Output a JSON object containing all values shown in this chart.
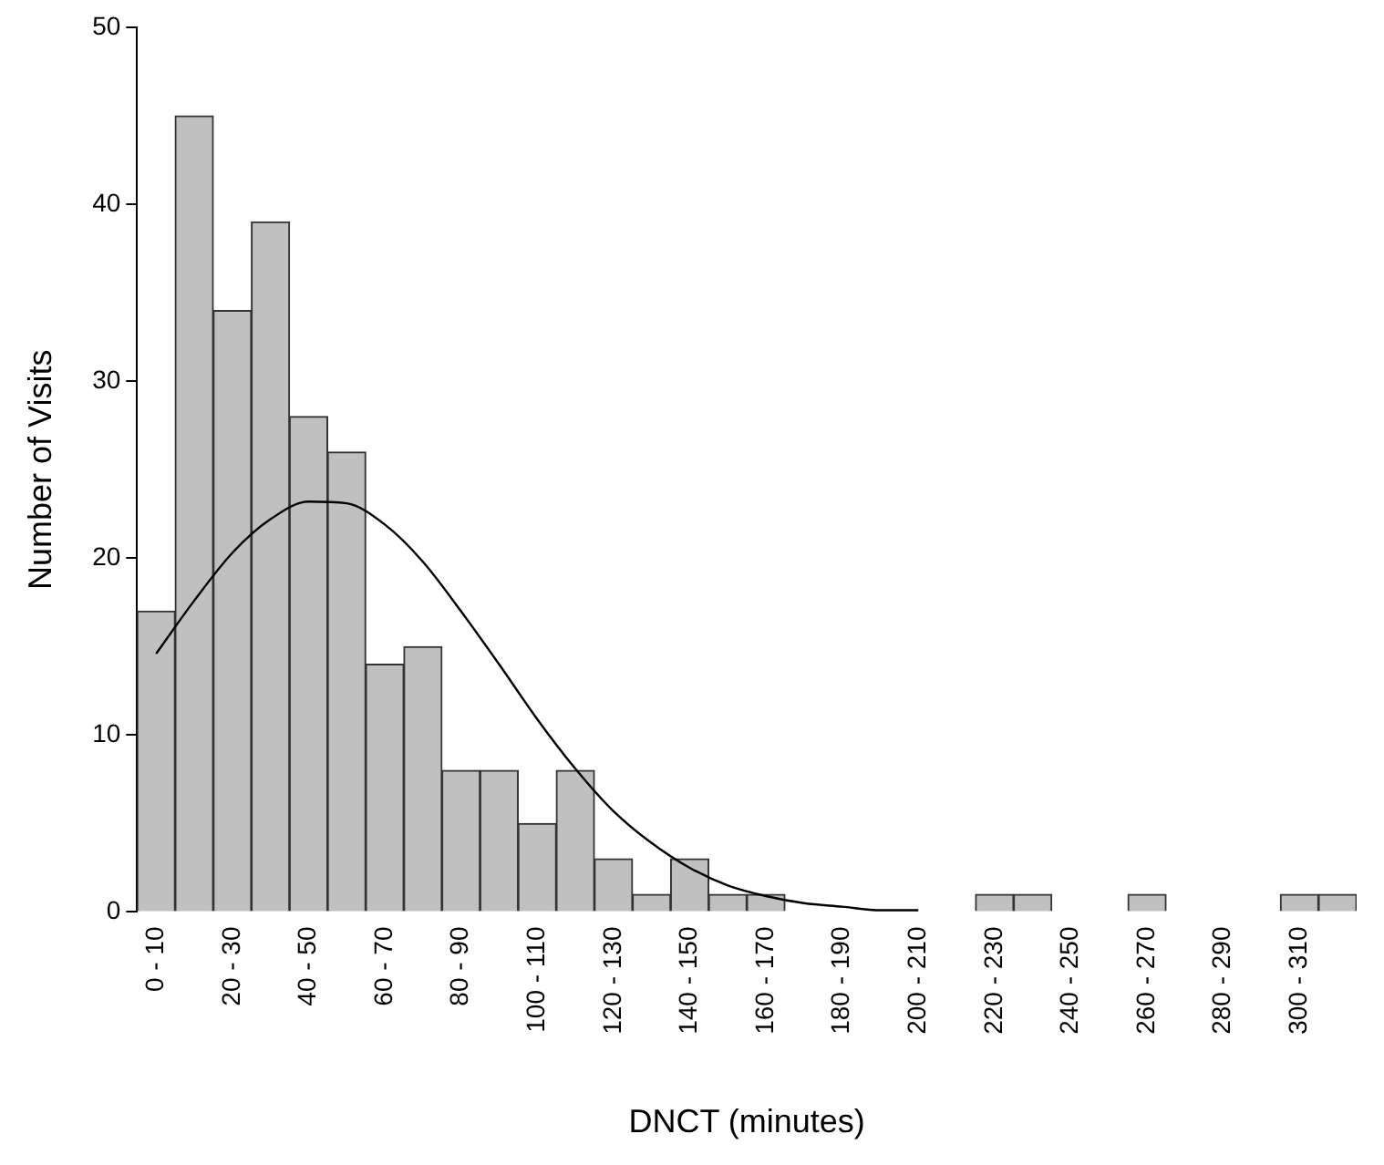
{
  "chart_data": {
    "type": "bar",
    "xlabel": "DNCT (minutes)",
    "ylabel": "Number of Visits",
    "categories": [
      "0 - 10",
      null,
      "20 - 30",
      null,
      "40 - 50",
      null,
      "60 - 70",
      null,
      "80 - 90",
      null,
      "100 - 110",
      null,
      "120 - 130",
      null,
      "140 - 150",
      null,
      "160 - 170",
      null,
      "180 - 190",
      null,
      "200 - 210",
      null,
      "220 - 230",
      null,
      "240 - 250",
      null,
      "260 - 270",
      null,
      "280 - 290",
      null,
      "300 - 310",
      null
    ],
    "values": [
      17,
      45,
      34,
      39,
      28,
      26,
      14,
      15,
      8,
      8,
      5,
      8,
      3,
      1,
      3,
      1,
      1,
      0,
      0,
      0,
      0,
      0,
      1,
      1,
      0,
      0,
      1,
      0,
      0,
      0,
      1,
      1
    ],
    "color": "#c0c0c0",
    "series": [
      {
        "type": "line",
        "color": "#000000",
        "values": [
          14.6,
          17.6,
          20.3,
          22.2,
          23.2,
          23.1,
          21.9,
          19.8,
          17.0,
          14.0,
          10.9,
          8.1,
          5.7,
          3.9,
          2.5,
          1.5,
          0.9,
          0.5,
          0.3,
          0.1,
          0.1,
          null,
          null,
          null,
          null,
          null,
          null,
          null,
          null,
          null,
          null,
          null
        ]
      }
    ],
    "ylim": [
      0,
      50
    ],
    "yticks": [
      0,
      10,
      20,
      30,
      40,
      50
    ],
    "grid": false,
    "legend": false,
    "marker": "none",
    "line_style": "solid"
  }
}
